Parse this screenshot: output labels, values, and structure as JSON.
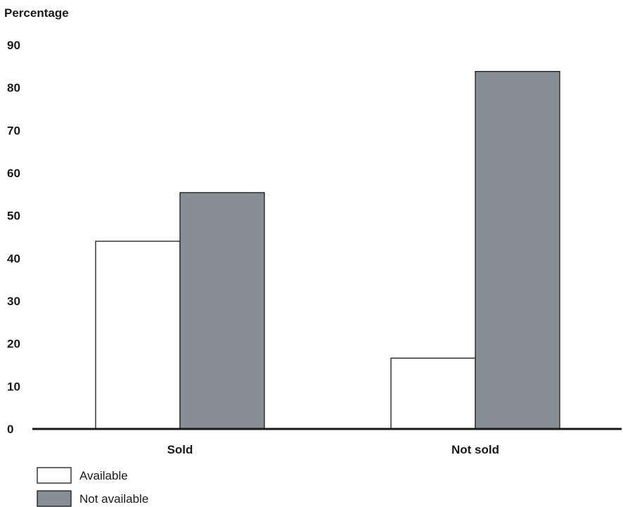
{
  "chart_data": {
    "type": "bar",
    "title": "",
    "ylabel": "Percentage",
    "xlabel": "",
    "ylim": [
      0,
      90
    ],
    "yticks": [
      0,
      10,
      20,
      30,
      40,
      50,
      60,
      70,
      80,
      90
    ],
    "categories": [
      "Sold",
      "Not sold"
    ],
    "series": [
      {
        "name": "Available",
        "values": [
          44,
          16.6
        ],
        "color": "#ffffff"
      },
      {
        "name": "Not available",
        "values": [
          55.4,
          83.8
        ],
        "color": "#878e95"
      }
    ],
    "grid": false,
    "legend": "bottom-left"
  }
}
